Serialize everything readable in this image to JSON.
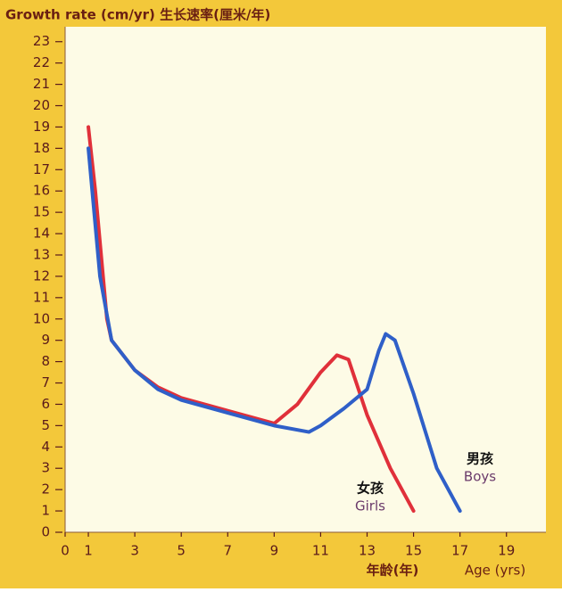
{
  "chart_data": {
    "type": "line",
    "title": "Growth rate (cm/yr)  生长速率(厘米/年)",
    "x_label_zh": "年龄(年)",
    "x_label": "Age (yrs)",
    "xlim": [
      0,
      20.7
    ],
    "xticks": [
      0,
      1,
      3,
      5,
      7,
      9,
      11,
      13,
      15,
      17,
      19
    ],
    "ylim": [
      0,
      23.7
    ],
    "yticks": [
      0,
      1,
      2,
      3,
      4,
      5,
      6,
      7,
      8,
      9,
      10,
      11,
      12,
      13,
      14,
      15,
      16,
      17,
      18,
      19,
      20,
      21,
      22,
      23
    ],
    "series": [
      {
        "name": "Girls",
        "name_zh": "女孩",
        "color": "#e0303a",
        "x": [
          1,
          1.3,
          1.8,
          2,
          3,
          4,
          5,
          7,
          9,
          10,
          11,
          11.7,
          12.2,
          13,
          14,
          15
        ],
        "values": [
          19,
          16,
          10,
          9,
          7.6,
          6.8,
          6.3,
          5.7,
          5.1,
          6,
          7.5,
          8.3,
          8.1,
          5.5,
          3,
          1
        ]
      },
      {
        "name": "Boys",
        "name_zh": "男孩",
        "color": "#2f5fc8",
        "x": [
          1,
          1.5,
          2,
          3,
          4,
          5,
          7,
          9,
          10.5,
          11,
          12,
          13,
          13.5,
          13.8,
          14.2,
          15,
          16,
          17
        ],
        "values": [
          18,
          12,
          9,
          7.6,
          6.7,
          6.2,
          5.6,
          5,
          4.7,
          5,
          5.8,
          6.7,
          8.5,
          9.3,
          9,
          6.5,
          3,
          1
        ]
      }
    ]
  }
}
